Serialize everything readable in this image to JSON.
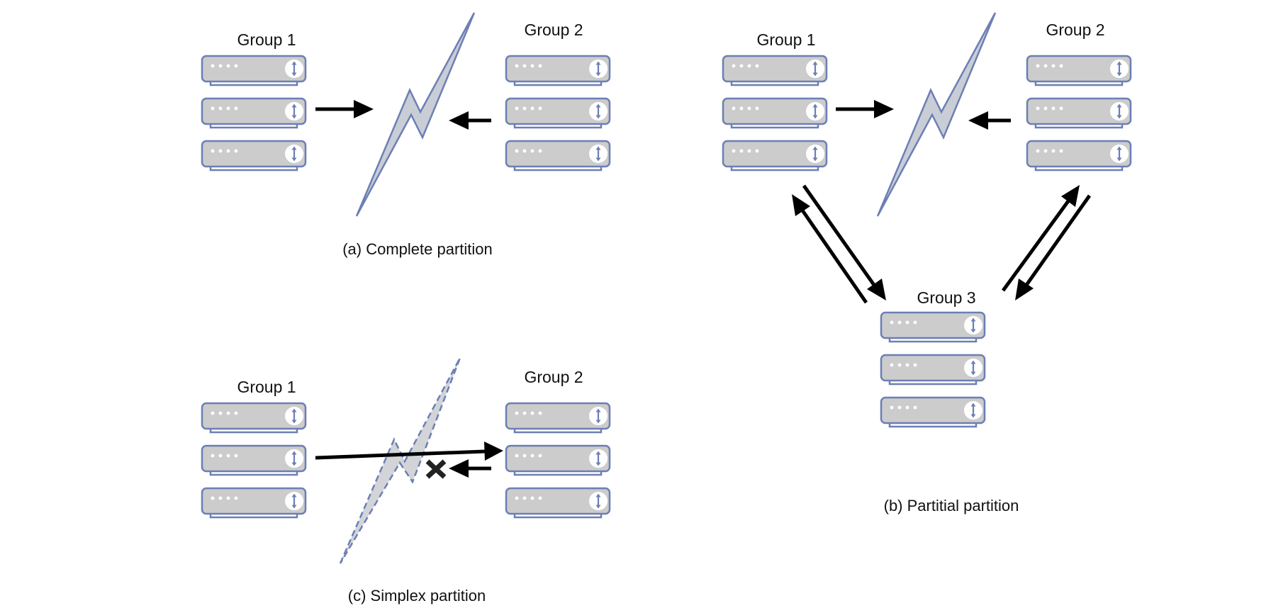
{
  "colors": {
    "server_fill": "#cccccc",
    "server_stroke": "#6c7fb5",
    "bolt_fill": "#c9cdd6",
    "arrow": "#000000"
  },
  "icons": [
    "server-unit-icon",
    "lightning-bolt-icon",
    "arrow-icon",
    "x-mark-icon"
  ],
  "panel_a": {
    "group1": "Group 1",
    "group2": "Group 2",
    "caption": "(a) Complete partition"
  },
  "panel_b": {
    "group1": "Group 1",
    "group2": "Group 2",
    "group3": "Group 3",
    "caption": "(b) Partitial partition"
  },
  "panel_c": {
    "group1": "Group 1",
    "group2": "Group 2",
    "caption": "(c) Simplex partition"
  }
}
